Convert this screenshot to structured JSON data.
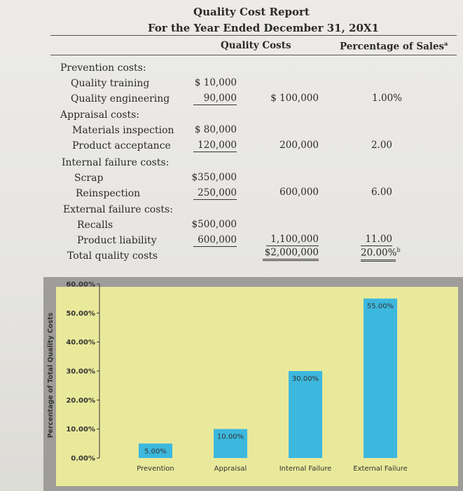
{
  "report": {
    "title": "Quality Cost Report",
    "subtitle": "For the Year Ended December 31, 20X1",
    "col_quality_costs": "Quality Costs",
    "col_percentage": "Percentage of Sales",
    "col_percentage_footnote": "a",
    "categories": [
      {
        "label": "Prevention costs:",
        "items": [
          {
            "label": "Quality training",
            "amount": "$ 10,000"
          },
          {
            "label": "Quality engineering",
            "amount": "90,000"
          }
        ],
        "total": "$ 100,000",
        "percentage": "1.00%"
      },
      {
        "label": "Appraisal costs:",
        "items": [
          {
            "label": "Materials inspection",
            "amount": "$ 80,000"
          },
          {
            "label": "Product acceptance",
            "amount": "120,000"
          }
        ],
        "total": "200,000",
        "percentage": "2.00"
      },
      {
        "label": "Internal failure costs:",
        "items": [
          {
            "label": "Scrap",
            "amount": "$350,000"
          },
          {
            "label": "Reinspection",
            "amount": "250,000"
          }
        ],
        "total": "600,000",
        "percentage": "6.00"
      },
      {
        "label": "External failure costs:",
        "items": [
          {
            "label": "Recalls",
            "amount": "$500,000"
          },
          {
            "label": "Product liability",
            "amount": "600,000"
          }
        ],
        "total": "1,100,000",
        "percentage": "11.00"
      }
    ],
    "total_label": "Total quality costs",
    "grand_total": "$2,000,000",
    "grand_percentage": "20.00%",
    "grand_percentage_footnote": "b"
  },
  "colors": {
    "bar": "#3cb8de",
    "chart_bg": "#e9e99b",
    "chart_frame": "#9f9d9a"
  },
  "chart_data": {
    "type": "bar",
    "ylabel": "Percentage of Total Quality Costs",
    "xlabel": "",
    "title": "",
    "ylim": [
      0,
      60
    ],
    "yticks": [
      "0.00%",
      "10.00%",
      "20.00%",
      "30.00%",
      "40.00%",
      "50.00%",
      "60.00%"
    ],
    "categories": [
      "Prevention",
      "Appraisal",
      "Internal Failure",
      "External Failure"
    ],
    "values": [
      5,
      10,
      30,
      55
    ],
    "data_labels": [
      "5.00%",
      "10.00%",
      "30.00%",
      "55.00%"
    ],
    "grid": false
  }
}
